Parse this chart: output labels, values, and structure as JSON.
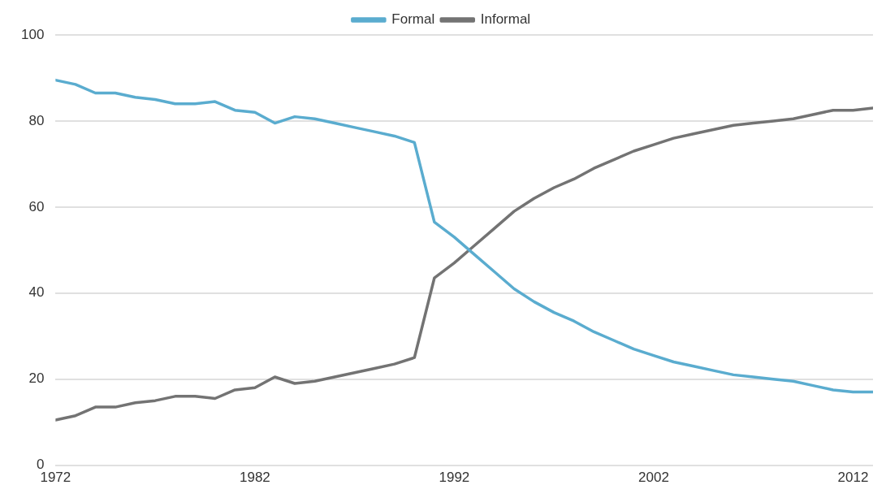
{
  "chart_data": {
    "type": "line",
    "x": [
      1972,
      1973,
      1974,
      1975,
      1976,
      1977,
      1978,
      1979,
      1980,
      1981,
      1982,
      1983,
      1984,
      1985,
      1986,
      1987,
      1988,
      1989,
      1990,
      1991,
      1992,
      1993,
      1994,
      1995,
      1996,
      1997,
      1998,
      1999,
      2000,
      2001,
      2002,
      2003,
      2004,
      2005,
      2006,
      2007,
      2008,
      2009,
      2010,
      2011,
      2012,
      2013
    ],
    "series": [
      {
        "name": "Formal",
        "color": "#5aaccf",
        "values": [
          89.5,
          88.5,
          86.5,
          86.5,
          85.5,
          85,
          84,
          84,
          84.5,
          82.5,
          82,
          79.5,
          81,
          80.5,
          79.5,
          78.5,
          77.5,
          76.5,
          75,
          56.5,
          53,
          49,
          45,
          41,
          38,
          35.5,
          33.5,
          31,
          29,
          27,
          25.5,
          24,
          23,
          22,
          21,
          20.5,
          20,
          19.5,
          18.5,
          17.5,
          17,
          17
        ]
      },
      {
        "name": "Informal",
        "color": "#737373",
        "values": [
          10.5,
          11.5,
          13.5,
          13.5,
          14.5,
          15,
          16,
          16,
          15.5,
          17.5,
          18,
          20.5,
          19,
          19.5,
          20.5,
          21.5,
          22.5,
          23.5,
          25,
          43.5,
          47,
          51,
          55,
          59,
          62,
          64.5,
          66.5,
          69,
          71,
          73,
          74.5,
          76,
          77,
          78,
          79,
          79.5,
          80,
          80.5,
          81.5,
          82.5,
          82.5,
          83
        ]
      }
    ],
    "xlim": [
      1972,
      2013
    ],
    "xticks": [
      1972,
      1982,
      1992,
      2002,
      2012
    ],
    "ylim": [
      0,
      100
    ],
    "yticks": [
      0,
      20,
      40,
      60,
      80,
      100
    ],
    "grid": "y",
    "legend": "top",
    "marker": "none",
    "line_style": "solid"
  }
}
